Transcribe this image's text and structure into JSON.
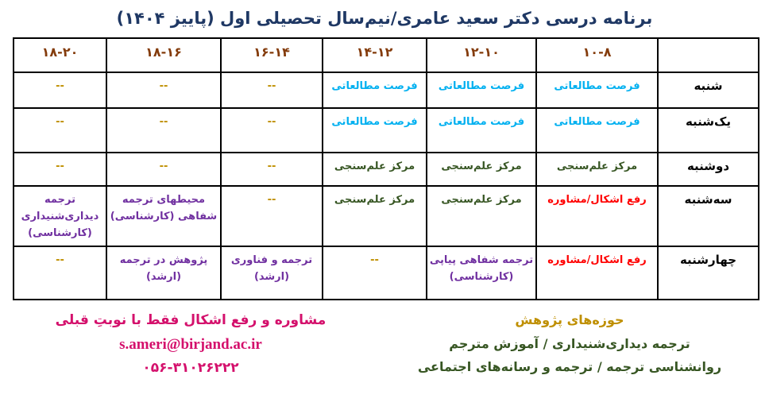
{
  "title": "برنامه درسی دکتر سعید عامری/نیم‌سال تحصیلی اول (پاییز ۱۴۰۴)",
  "table": {
    "time_headers": [
      "۱۰-۸",
      "۱۲-۱۰",
      "۱۴-۱۲",
      "۱۶-۱۴",
      "۱۸-۱۶",
      "۱۸-۲۰"
    ],
    "rows": [
      {
        "day": "شنبه",
        "cells": [
          {
            "text": "فرصت مطالعاتی",
            "style": "study"
          },
          {
            "text": "فرصت مطالعاتی",
            "style": "study"
          },
          {
            "text": "فرصت مطالعاتی",
            "style": "study"
          },
          {
            "text": "--",
            "style": "dash"
          },
          {
            "text": "--",
            "style": "dash"
          },
          {
            "text": "--",
            "style": "dash"
          }
        ]
      },
      {
        "day": "یک‌شنبه",
        "cells": [
          {
            "text": "فرصت مطالعاتی",
            "style": "study"
          },
          {
            "text": "فرصت مطالعاتی",
            "style": "study"
          },
          {
            "text": "فرصت مطالعاتی",
            "style": "study"
          },
          {
            "text": "--",
            "style": "dash"
          },
          {
            "text": "--",
            "style": "dash"
          },
          {
            "text": "--",
            "style": "dash"
          }
        ]
      },
      {
        "day": "دوشنبه",
        "cells": [
          {
            "text": "مرکز علم‌سنجی",
            "style": "scientometrics"
          },
          {
            "text": "مرکز علم‌سنجی",
            "style": "scientometrics"
          },
          {
            "text": "مرکز علم‌سنجی",
            "style": "scientometrics"
          },
          {
            "text": "--",
            "style": "dash"
          },
          {
            "text": "--",
            "style": "dash"
          },
          {
            "text": "--",
            "style": "dash"
          }
        ]
      },
      {
        "day": "سه‌شنبه",
        "cells": [
          {
            "text": "رفع اشکال/مشاوره",
            "style": "advising"
          },
          {
            "text": "مرکز علم‌سنجی",
            "style": "scientometrics"
          },
          {
            "text": "مرکز علم‌سنجی",
            "style": "scientometrics"
          },
          {
            "text": "--",
            "style": "dash"
          },
          {
            "text": "محیطهای ترجمه\nشفاهی (کارشناسی)",
            "style": "course"
          },
          {
            "text": "ترجمه\nدیداری‌شنیداری\n(کارشناسی)",
            "style": "course"
          }
        ]
      },
      {
        "day": "چهارشنبه",
        "cells": [
          {
            "text": "رفع اشکال/مشاوره",
            "style": "advising"
          },
          {
            "text": "ترجمه شفاهی پیاپی\n(کارشناسی)",
            "style": "course"
          },
          {
            "text": "--",
            "style": "dash"
          },
          {
            "text": "ترجمه و فناوری\n(ارشد)",
            "style": "course"
          },
          {
            "text": "پژوهش در ترجمه\n(ارشد)",
            "style": "course"
          },
          {
            "text": "--",
            "style": "dash"
          }
        ]
      }
    ]
  },
  "footer": {
    "research": {
      "title": "حوزه‌های پژوهش",
      "line1": "ترجمه دیداری‌شنیداری /  آموزش مترجم",
      "line2": "روانشناسی ترجمه / ترجمه و رسانه‌های اجتماعی"
    },
    "contact": {
      "note": "مشاوره و رفع اشکال فقط با نوبتِ قبلی",
      "email": "s.ameri@birjand.ac.ir",
      "phone": "۰۵۶-۳۱۰۲۶۲۲۲"
    }
  },
  "colors": {
    "title": "#1F3864",
    "time_header": "#843C0C",
    "study_leave": "#00B0F0",
    "scientometrics": "#375623",
    "advising": "#FF0000",
    "course": "#7030A0",
    "dash": "#BF8F00",
    "research_title": "#BF8F00",
    "research_line": "#375623",
    "contact": "#D4106C"
  }
}
